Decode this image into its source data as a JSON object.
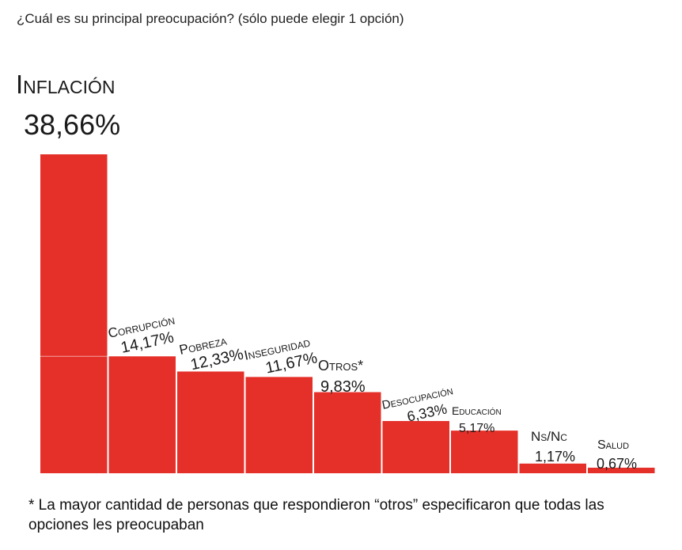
{
  "question": "¿Cuál es su principal preocupación? (sólo puede elegir 1 opción)",
  "footnote": "* La mayor cantidad de personas que respondieron “otros” especificaron que todas las opciones les preocupaban",
  "colors": {
    "bar": "#e53029",
    "divider": "#f2a19d",
    "text": "#1a1a1a"
  },
  "chart_data": {
    "type": "bar",
    "title": "",
    "xlabel": "",
    "ylabel": "",
    "ylim": [
      0,
      38.66
    ],
    "categories": [
      "Inflación",
      "Corrupción",
      "Pobreza",
      "Inseguridad",
      "Otros*",
      "Desocupación",
      "Educación",
      "Ns/Nc",
      "Salud"
    ],
    "values": [
      38.66,
      14.17,
      12.33,
      11.67,
      9.83,
      6.33,
      5.17,
      1.17,
      0.67
    ],
    "labels": [
      "38,66%",
      "14,17%",
      "12,33%",
      "11,67%",
      "9,83%",
      "6,33%",
      "5,17%",
      "1,17%",
      "0,67%"
    ],
    "grid": false,
    "legend": "none"
  }
}
